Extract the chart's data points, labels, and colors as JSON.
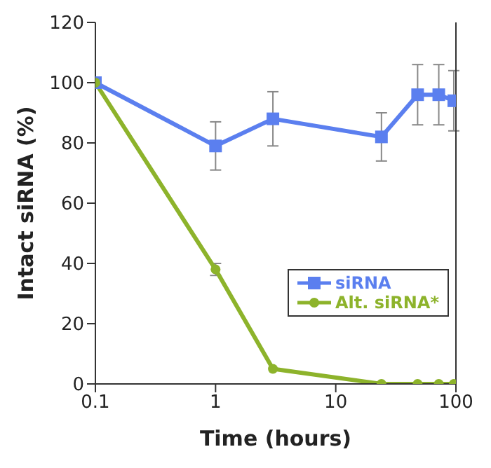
{
  "chart_data": {
    "type": "line",
    "xlabel": "Time (hours)",
    "ylabel": "Intact siRNA (%)",
    "log": "x",
    "x": [
      0.1,
      1,
      3,
      24,
      48,
      72,
      96
    ],
    "series": [
      {
        "name": "siRNA",
        "color": "#5b7fef",
        "marker": "square",
        "values": [
          100,
          79,
          88,
          82,
          96,
          96,
          94
        ],
        "errors": [
          null,
          8,
          9,
          8,
          10,
          10,
          10
        ]
      },
      {
        "name": "Alt. siRNA*",
        "color": "#8db32b",
        "marker": "circle",
        "values": [
          100,
          38,
          5,
          0,
          0,
          0,
          0
        ],
        "errors": [
          null,
          2,
          null,
          null,
          null,
          null,
          null
        ]
      }
    ],
    "xlim": [
      0.1,
      100
    ],
    "xticks": [
      0.1,
      1,
      10,
      100
    ],
    "ylim": [
      0,
      120
    ],
    "yticks": [
      0,
      20,
      40,
      60,
      80,
      100,
      120
    ],
    "legend": "bottom right",
    "grid": false
  }
}
